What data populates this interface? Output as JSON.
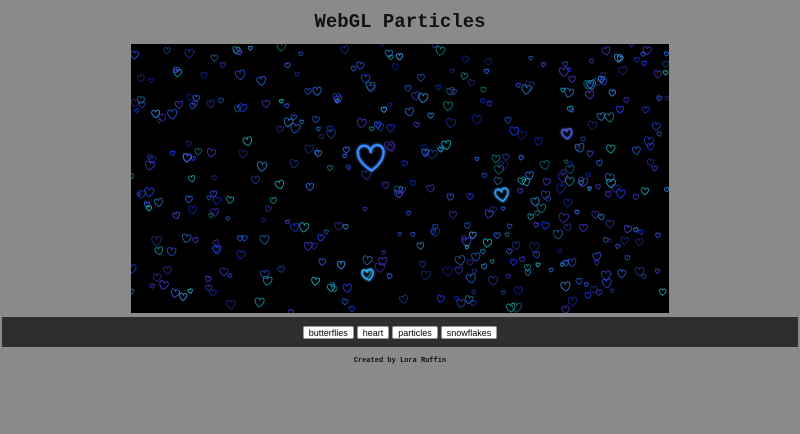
{
  "header": {
    "title": "WebGL Particles"
  },
  "canvas": {
    "background": "#000000",
    "particle_icon": "heart-icon",
    "palette": [
      "#1a3aff",
      "#2b6bff",
      "#3aa0ff",
      "#4a38d8",
      "#19c0c8",
      "#2f4fe0"
    ]
  },
  "toolbar": {
    "buttons": [
      {
        "label": "butterflies"
      },
      {
        "label": "heart"
      },
      {
        "label": "particles"
      },
      {
        "label": "snowflakes"
      }
    ]
  },
  "footer": {
    "credit": "Created by Lora Ruffin"
  }
}
